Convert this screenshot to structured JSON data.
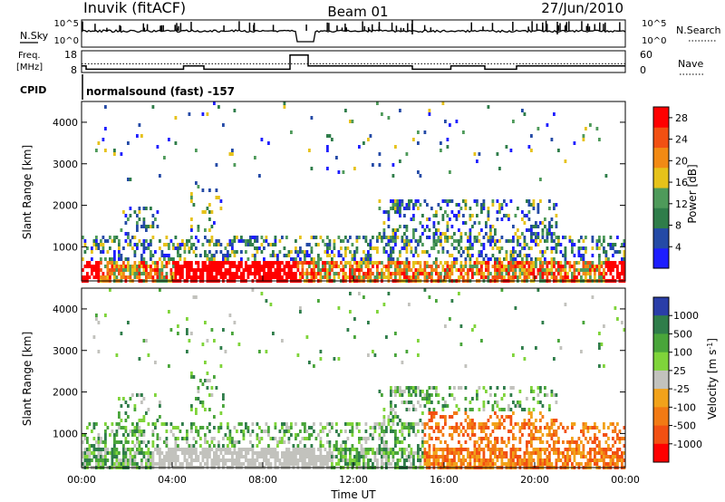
{
  "header": {
    "station": "Inuvik (fitACF)",
    "beam": "Beam 01",
    "date": "27/Jun/2010"
  },
  "top_panels": {
    "nsky_label": "N.Sky",
    "nsky_ticks": [
      "10^5",
      "10^0"
    ],
    "nsearch_label": "N.Search",
    "nsearch_ticks": [
      "10^5",
      "10^0"
    ],
    "freq_label_1": "Freq.",
    "freq_label_2": "[MHz]",
    "freq_ticks": [
      "18",
      "8"
    ],
    "nave_label": "Nave",
    "nave_ticks": [
      "60",
      "0"
    ],
    "cpid_label": "CPID",
    "cpid_text": "normalsound (fast) -157"
  },
  "colors": {
    "power_scale": [
      "#1d1dff",
      "#244aa6",
      "#2f7d4a",
      "#4e9a5a",
      "#e6c21a",
      "#f28a14",
      "#f25012",
      "#ff0000"
    ],
    "velocity_scale": [
      "#2a3ea8",
      "#2f7d4a",
      "#49a53a",
      "#7fd43a",
      "#c2c2bd",
      "#f2a21a",
      "#f27a14",
      "#f25012",
      "#ff0000"
    ]
  },
  "chart_data": [
    {
      "type": "heatmap",
      "name": "power",
      "ylabel": "Slant Range [km]",
      "xlabel": "",
      "xlim": [
        "00:00",
        "24:00"
      ],
      "ylim": [
        180,
        4500
      ],
      "y_ticks": [
        1000,
        2000,
        3000,
        4000
      ],
      "colorbar_label": "Power [dB]",
      "colorbar_ticks": [
        "4",
        "8",
        "12",
        "16",
        "20",
        "24",
        "28"
      ],
      "colorbar_range": [
        0,
        30
      ]
    },
    {
      "type": "heatmap",
      "name": "velocity",
      "ylabel": "Slant Range [km]",
      "xlabel": "Time UT",
      "x_ticks": [
        "00:00",
        "04:00",
        "08:00",
        "12:00",
        "16:00",
        "20:00",
        "00:00"
      ],
      "ylim": [
        180,
        4500
      ],
      "y_ticks": [
        1000,
        2000,
        3000,
        4000
      ],
      "colorbar_label": "Velocity [m s^-1]",
      "colorbar_ticks": [
        "1000",
        "500",
        "100",
        "25",
        "-25",
        "-100",
        "-500",
        "-1000"
      ]
    }
  ]
}
